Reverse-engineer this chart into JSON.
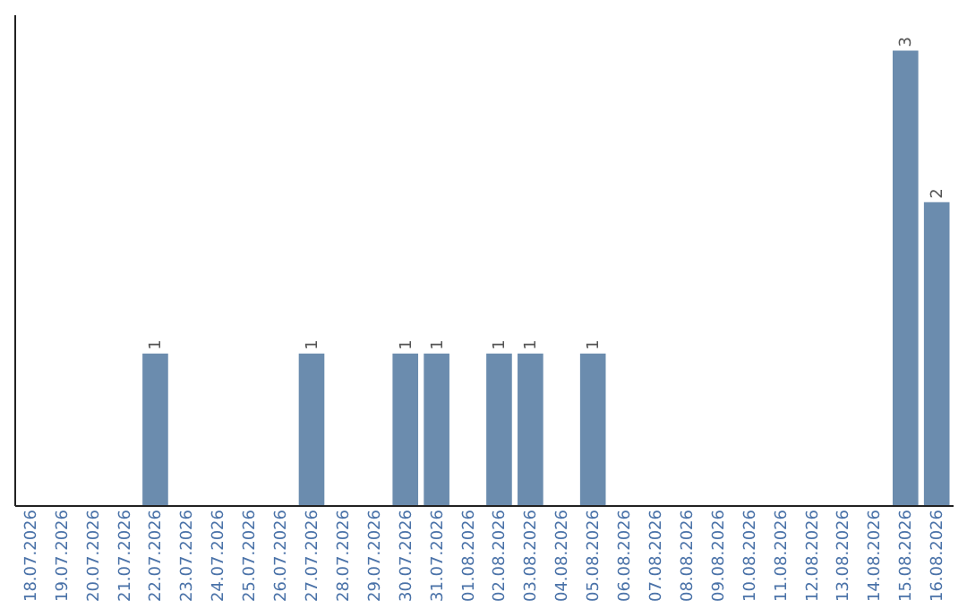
{
  "chart_data": {
    "type": "bar",
    "categories": [
      "18.07.2026",
      "19.07.2026",
      "20.07.2026",
      "21.07.2026",
      "22.07.2026",
      "23.07.2026",
      "24.07.2026",
      "25.07.2026",
      "26.07.2026",
      "27.07.2026",
      "28.07.2026",
      "29.07.2026",
      "30.07.2026",
      "31.07.2026",
      "01.08.2026",
      "02.08.2026",
      "03.08.2026",
      "04.08.2026",
      "05.08.2026",
      "06.08.2026",
      "07.08.2026",
      "08.08.2026",
      "09.08.2026",
      "10.08.2026",
      "11.08.2026",
      "12.08.2026",
      "13.08.2026",
      "14.08.2026",
      "15.08.2026",
      "16.08.2026"
    ],
    "values": [
      0,
      0,
      0,
      0,
      1,
      0,
      0,
      0,
      0,
      1,
      0,
      0,
      1,
      1,
      0,
      1,
      1,
      0,
      1,
      0,
      0,
      0,
      0,
      0,
      0,
      0,
      0,
      0,
      3,
      2
    ],
    "color": "#6b8cae",
    "value_labels": [
      null,
      null,
      null,
      null,
      "1",
      null,
      null,
      null,
      null,
      "1",
      null,
      null,
      "1",
      "1",
      null,
      "1",
      "1",
      null,
      "1",
      null,
      null,
      null,
      null,
      null,
      null,
      null,
      null,
      null,
      "3",
      "2"
    ]
  }
}
